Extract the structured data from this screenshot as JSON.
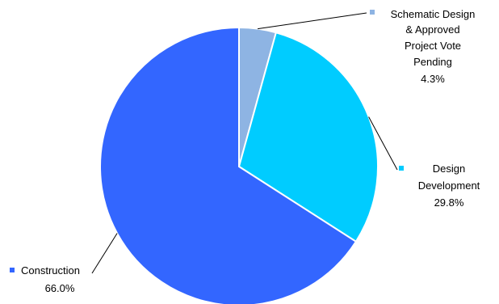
{
  "chart_data": {
    "type": "pie",
    "slices": [
      {
        "lines": [
          "Schematic Design",
          "& Approved",
          "Project Vote",
          "Pending"
        ],
        "pct_label": "4.3%",
        "value": 4.3,
        "color": "#8EB4E3"
      },
      {
        "lines": [
          "Design",
          "Development"
        ],
        "pct_label": "29.8%",
        "value": 29.8,
        "color": "#00CCFF"
      },
      {
        "lines": [
          "Construction"
        ],
        "pct_label": "66.0%",
        "value": 66.0,
        "color": "#3366FF"
      }
    ]
  }
}
